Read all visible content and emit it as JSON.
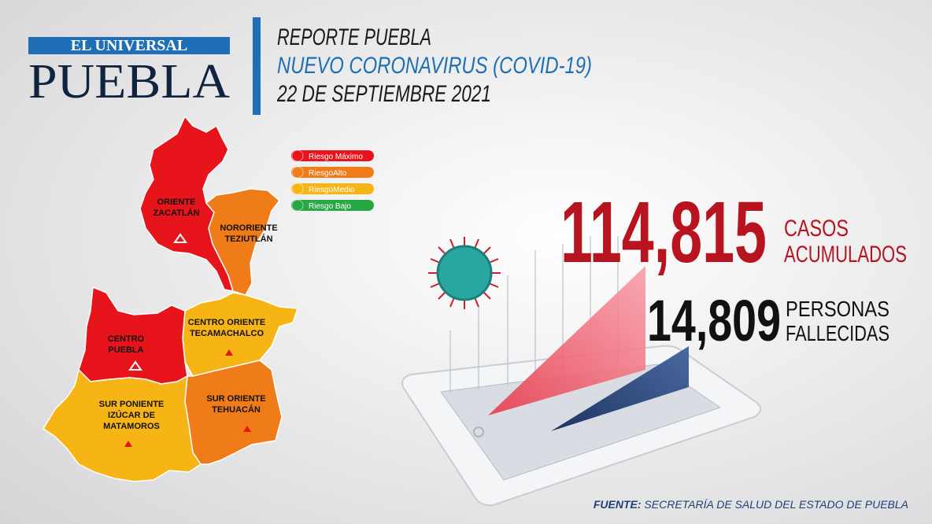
{
  "logo": {
    "top": "EL UNIVERSAL",
    "bottom": "PUEBLA"
  },
  "header": {
    "lines": [
      "REPORTE PUEBLA",
      "NUEVO CORONAVIRUS (COVID-19)",
      "22 DE SEPTIEMBRE 2021"
    ]
  },
  "legend": [
    {
      "label": "Riesgo Máximo",
      "color": "#e8141b"
    },
    {
      "label": "RiesgoAlto",
      "color": "#f07b19"
    },
    {
      "label": "RiesgoMedio",
      "color": "#f7b515"
    },
    {
      "label": "Riesgo Bajo",
      "color": "#27a845"
    }
  ],
  "regions": [
    {
      "lines": [
        "ORIENTE",
        "ZACATLÁN"
      ],
      "color": "#e8141b"
    },
    {
      "lines": [
        "NORORIENTE",
        "TEZIUTLÁN"
      ],
      "color": "#f07b19"
    },
    {
      "lines": [
        "CENTRO ORIENTE",
        "TECAMACHALCO"
      ],
      "color": "#f7b515"
    },
    {
      "lines": [
        "CENTRO",
        "PUEBLA"
      ],
      "color": "#e8141b"
    },
    {
      "lines": [
        "SUR PONIENTE",
        "IZÚCAR DE",
        "MATAMOROS"
      ],
      "color": "#f7b515"
    },
    {
      "lines": [
        "SUR ORIENTE",
        "TEHUACÁN"
      ],
      "color": "#f07b19"
    }
  ],
  "stats": [
    {
      "number": "114,815",
      "lines": [
        "CASOS",
        "ACUMULADOS"
      ]
    },
    {
      "number": "14,809",
      "lines": [
        "PERSONAS",
        "FALLECIDAS"
      ]
    }
  ],
  "footer": {
    "label": "FUENTE:",
    "text": "SECRETARÍA DE SALUD DEL ESTADO DE PUEBLA"
  }
}
